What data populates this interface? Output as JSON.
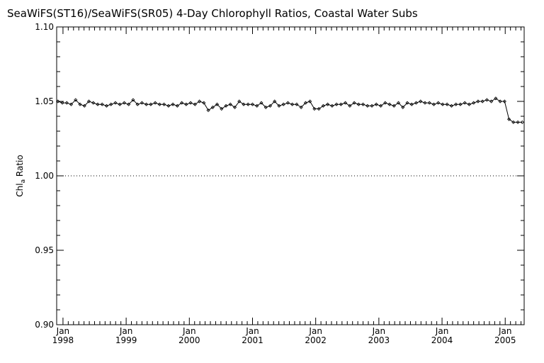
{
  "chart_data": {
    "type": "line",
    "title": "SeaWiFS(ST16)/SeaWiFS(SR05) 4-Day Chlorophyll Ratios, Coastal Water Subs",
    "ylabel_main": "Chl",
    "ylabel_sub": "a",
    "ylabel_rest": " Ratio",
    "xlabel": "",
    "ylim": [
      0.9,
      1.1
    ],
    "y_ticks": [
      "0.90",
      "0.95",
      "1.00",
      "1.05",
      "1.10"
    ],
    "y_tick_values": [
      0.9,
      0.95,
      1.0,
      1.05,
      1.1
    ],
    "xlim": [
      1997.9,
      2005.3
    ],
    "x_ticks": [
      {
        "month": "Jan",
        "year": "1998",
        "value": 1998
      },
      {
        "month": "Jan",
        "year": "1999",
        "value": 1999
      },
      {
        "month": "Jan",
        "year": "2000",
        "value": 2000
      },
      {
        "month": "Jan",
        "year": "2001",
        "value": 2001
      },
      {
        "month": "Jan",
        "year": "2002",
        "value": 2002
      },
      {
        "month": "Jan",
        "year": "2003",
        "value": 2003
      },
      {
        "month": "Jan",
        "year": "2004",
        "value": 2004
      },
      {
        "month": "Jan",
        "year": "2005",
        "value": 2005
      }
    ],
    "reference_line": {
      "y": 1.0,
      "style": "dotted"
    },
    "series": [
      {
        "x": [
          1997.92,
          1997.99,
          1998.06,
          1998.13,
          1998.2,
          1998.27,
          1998.34,
          1998.41,
          1998.48,
          1998.55,
          1998.62,
          1998.69,
          1998.76,
          1998.83,
          1998.9,
          1998.97,
          1999.04,
          1999.11,
          1999.18,
          1999.25,
          1999.32,
          1999.39,
          1999.46,
          1999.53,
          1999.6,
          1999.67,
          1999.74,
          1999.81,
          1999.88,
          1999.95,
          2000.02,
          2000.09,
          2000.16,
          2000.23,
          2000.3,
          2000.37,
          2000.44,
          2000.51,
          2000.58,
          2000.65,
          2000.72,
          2000.79,
          2000.86,
          2000.93,
          2001.0,
          2001.07,
          2001.14,
          2001.21,
          2001.28,
          2001.35,
          2001.42,
          2001.49,
          2001.56,
          2001.63,
          2001.7,
          2001.77,
          2001.84,
          2001.91,
          2001.98,
          2002.05,
          2002.12,
          2002.19,
          2002.26,
          2002.33,
          2002.4,
          2002.47,
          2002.54,
          2002.61,
          2002.68,
          2002.75,
          2002.82,
          2002.89,
          2002.96,
          2003.03,
          2003.1,
          2003.17,
          2003.24,
          2003.31,
          2003.38,
          2003.45,
          2003.52,
          2003.59,
          2003.66,
          2003.73,
          2003.8,
          2003.87,
          2003.94,
          2004.01,
          2004.08,
          2004.15,
          2004.22,
          2004.29,
          2004.36,
          2004.43,
          2004.5,
          2004.57,
          2004.64,
          2004.71,
          2004.78,
          2004.85,
          2004.92,
          2004.99,
          2005.06,
          2005.13,
          2005.2,
          2005.27
        ],
        "values": [
          1.05,
          1.049,
          1.049,
          1.048,
          1.051,
          1.048,
          1.047,
          1.05,
          1.049,
          1.048,
          1.048,
          1.047,
          1.048,
          1.049,
          1.048,
          1.049,
          1.048,
          1.051,
          1.048,
          1.049,
          1.048,
          1.048,
          1.049,
          1.048,
          1.048,
          1.047,
          1.048,
          1.047,
          1.049,
          1.048,
          1.049,
          1.048,
          1.05,
          1.049,
          1.044,
          1.046,
          1.048,
          1.045,
          1.047,
          1.048,
          1.046,
          1.05,
          1.048,
          1.048,
          1.048,
          1.047,
          1.049,
          1.046,
          1.047,
          1.05,
          1.047,
          1.048,
          1.049,
          1.048,
          1.048,
          1.046,
          1.049,
          1.05,
          1.045,
          1.045,
          1.047,
          1.048,
          1.047,
          1.048,
          1.048,
          1.049,
          1.047,
          1.049,
          1.048,
          1.048,
          1.047,
          1.047,
          1.048,
          1.047,
          1.049,
          1.048,
          1.047,
          1.049,
          1.046,
          1.049,
          1.048,
          1.049,
          1.05,
          1.049,
          1.049,
          1.048,
          1.049,
          1.048,
          1.048,
          1.047,
          1.048,
          1.048,
          1.049,
          1.048,
          1.049,
          1.05,
          1.05,
          1.051,
          1.05,
          1.052,
          1.05,
          1.05,
          1.038,
          1.036,
          1.036,
          1.036
        ]
      }
    ],
    "grid": false,
    "legend": "none"
  },
  "colors": {
    "line": "#000000",
    "axis": "#000000",
    "background": "#ffffff"
  }
}
